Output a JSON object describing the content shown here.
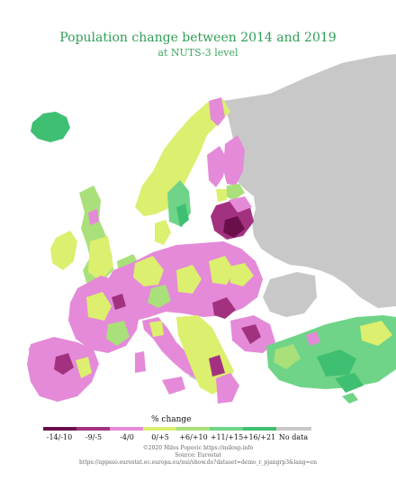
{
  "title": "Population change between 2014 and 2019",
  "subtitle": "at NUTS-3 level",
  "legend": {
    "title": "% change",
    "classes": [
      {
        "label": "-14/-10",
        "color": "#6b0f4a"
      },
      {
        "label": "-9/-5",
        "color": "#a2327f"
      },
      {
        "label": "-4/0",
        "color": "#e48ad8"
      },
      {
        "label": "0/+5",
        "color": "#dcef6e"
      },
      {
        "label": "+6/+10",
        "color": "#a9e07a"
      },
      {
        "label": "+11/+15",
        "color": "#6fd487"
      },
      {
        "label": "+16/+21",
        "color": "#3fbf72"
      },
      {
        "label": "No data",
        "color": "#c8c8c8"
      }
    ]
  },
  "credits": {
    "author": "©2020 Milos Popovic https://milosp.info",
    "source": "Source: Eurostat",
    "url": "https://appsso.eurostat.ec.europa.eu/nui/show.do?dataset=demo_r_pjangrp3&lang=en"
  },
  "colors": {
    "nodata": "#c8c8c8",
    "sea": "#ffffff"
  }
}
